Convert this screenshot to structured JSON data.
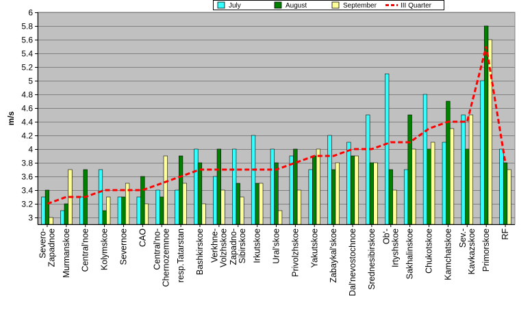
{
  "chart_data": {
    "type": "bar",
    "ylabel": "m/s",
    "ylim": [
      2.9,
      6.0
    ],
    "yticks": [
      3,
      3.2,
      3.4,
      3.6,
      3.8,
      4,
      4.2,
      4.4,
      4.6,
      4.8,
      5,
      5.2,
      5.4,
      5.6,
      5.8,
      6
    ],
    "grid": true,
    "legend_position": "top",
    "categories": [
      "Severo-Zapadnoe",
      "Murmanskoe",
      "Central'noe",
      "Kolymskoe",
      "Severnoe",
      "CAO",
      "Central'no-Chernozemnoe",
      "resp.Tatarstan",
      "Bashkirskoe",
      "Verkhne-Volzhskoe",
      "Zapadno-Sibirskoe",
      "Irkutskoe",
      "Ural'skoe",
      "Privolzhskoe",
      "Yakutskoe",
      "Zabaykal'skoe",
      "Dal'nevostochnoe",
      "Srednesibirskoe",
      "Ob'-Irtyshskoe",
      "Sakhalinskoe",
      "Chukotskoe",
      "Kamchatskoe",
      "Sev.-Kavkazskoe",
      "Primorskoe",
      "RF"
    ],
    "category_label_lines": [
      [
        "Severo-",
        "Zapadnoe"
      ],
      [
        "Murmanskoe"
      ],
      [
        "Central'noe"
      ],
      [
        "Kolymskoe"
      ],
      [
        "Severnoe"
      ],
      [
        "CAO"
      ],
      [
        "Central'no-",
        "Chernozemnoe"
      ],
      [
        "resp.Tatarstan"
      ],
      [
        "Bashkirskoe"
      ],
      [
        "Verkhne-",
        "Volzhskoe"
      ],
      [
        "Zapadno-",
        "Sibirskoe"
      ],
      [
        "Irkutskoe"
      ],
      [
        "Ural'skoe"
      ],
      [
        "Privolzhskoe"
      ],
      [
        "Yakutskoe"
      ],
      [
        "Zabaykal'skoe"
      ],
      [
        "Dal'nevostochnoe"
      ],
      [
        "Srednesibirskoe"
      ],
      [
        "Ob'-",
        "Irtyshskoe"
      ],
      [
        "Sakhalinskoe"
      ],
      [
        "Chukotskoe"
      ],
      [
        "Kamchatskoe"
      ],
      [
        "Sev.-",
        "Kavkazskoe"
      ],
      [
        "Primorskoe"
      ],
      [
        "RF"
      ]
    ],
    "series": [
      {
        "name": "July",
        "kind": "bar",
        "color": "#33ffff",
        "values": [
          3.3,
          3.1,
          3.3,
          3.7,
          3.3,
          3.3,
          3.4,
          3.4,
          4.0,
          3.6,
          4.0,
          4.2,
          4.0,
          3.9,
          3.7,
          4.2,
          4.1,
          4.5,
          5.1,
          3.7,
          4.8,
          4.1,
          4.5,
          5.0,
          4.0
        ]
      },
      {
        "name": "August",
        "kind": "bar",
        "color": "#007f00",
        "values": [
          3.4,
          3.2,
          3.7,
          3.1,
          3.3,
          3.6,
          3.3,
          3.9,
          3.8,
          4.0,
          3.5,
          3.5,
          3.8,
          4.0,
          3.9,
          3.7,
          3.9,
          3.8,
          3.7,
          4.5,
          4.0,
          4.7,
          4.0,
          5.8,
          3.8
        ]
      },
      {
        "name": "September",
        "kind": "bar",
        "color": "#ffff99",
        "values": [
          3.0,
          3.7,
          2.9,
          3.3,
          3.5,
          3.2,
          3.9,
          3.5,
          3.2,
          3.4,
          3.3,
          3.5,
          3.1,
          3.4,
          4.0,
          3.8,
          3.9,
          3.8,
          3.4,
          4.0,
          4.1,
          4.3,
          4.5,
          5.6,
          3.7
        ]
      },
      {
        "name": "III Quarter",
        "kind": "line",
        "color": "#ff0000",
        "values": [
          3.2,
          3.3,
          3.3,
          3.4,
          3.4,
          3.4,
          3.5,
          3.6,
          3.7,
          3.7,
          3.7,
          3.7,
          3.7,
          3.8,
          3.9,
          3.9,
          4.0,
          4.0,
          4.1,
          4.1,
          4.3,
          4.4,
          4.4,
          5.5,
          3.8
        ]
      }
    ]
  }
}
